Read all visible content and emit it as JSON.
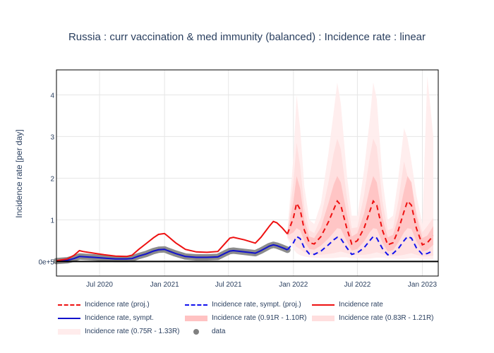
{
  "chart_data": {
    "type": "line",
    "title": "Russia : curr vaccination & med immunity (balanced) : Incidence rate : linear",
    "xlabel": "",
    "ylabel": "Incidence rate [per day]",
    "x_range": [
      "2020-03-01",
      "2023-02-15"
    ],
    "ylim": [
      -0.35,
      4.6
    ],
    "x_ticks": [
      "2020-07-01",
      "2021-01-01",
      "2021-07-01",
      "2022-01-01",
      "2022-07-01",
      "2023-01-01"
    ],
    "x_tick_labels": [
      "Jul 2020",
      "Jan 2021",
      "Jul 2021",
      "Jan 2022",
      "Jul 2022",
      "Jan 2023"
    ],
    "y_ticks": [
      0,
      1,
      2,
      3,
      4
    ],
    "y_tick_labels": [
      "0e+5",
      "1",
      "2",
      "3",
      "4"
    ],
    "grid": true,
    "legend_position": "bottom",
    "colors": {
      "proj": "#ee1111",
      "sympt_proj": "#1111ee",
      "incidence": "#ee1111",
      "sympt": "#1111cc",
      "band1": "#ffc2c2",
      "band2": "#ffdede",
      "band3": "#ffecec",
      "data": "#808080"
    },
    "legend": [
      {
        "key": "proj",
        "label": "Incidence rate (proj.)",
        "style": "dash"
      },
      {
        "key": "sympt_proj",
        "label": "Incidence rate, sympt. (proj.)",
        "style": "dash"
      },
      {
        "key": "incidence",
        "label": "Incidence rate",
        "style": "line"
      },
      {
        "key": "sympt",
        "label": "Incidence rate, sympt.",
        "style": "line"
      },
      {
        "key": "band1",
        "label": "Incidence rate (0.91R - 1.10R)",
        "style": "fill"
      },
      {
        "key": "band2",
        "label": "Incidence rate (0.83R - 1.21R)",
        "style": "fill"
      },
      {
        "key": "band3",
        "label": "Incidence rate (0.75R - 1.33R)",
        "style": "fill"
      },
      {
        "key": "data",
        "label": "data",
        "style": "dot"
      }
    ],
    "series": [
      {
        "name": "Incidence rate",
        "points": [
          [
            "2020-03-01",
            0.02
          ],
          [
            "2020-04-01",
            0.06
          ],
          [
            "2020-04-20",
            0.15
          ],
          [
            "2020-05-05",
            0.26
          ],
          [
            "2020-05-15",
            0.24
          ],
          [
            "2020-06-15",
            0.2
          ],
          [
            "2020-07-15",
            0.16
          ],
          [
            "2020-08-15",
            0.13
          ],
          [
            "2020-09-15",
            0.12
          ],
          [
            "2020-10-01",
            0.15
          ],
          [
            "2020-10-20",
            0.29
          ],
          [
            "2020-11-10",
            0.43
          ],
          [
            "2020-12-01",
            0.57
          ],
          [
            "2020-12-15",
            0.65
          ],
          [
            "2021-01-01",
            0.67
          ],
          [
            "2021-01-10",
            0.61
          ],
          [
            "2021-02-01",
            0.45
          ],
          [
            "2021-03-01",
            0.29
          ],
          [
            "2021-04-01",
            0.23
          ],
          [
            "2021-05-01",
            0.22
          ],
          [
            "2021-06-01",
            0.24
          ],
          [
            "2021-06-20",
            0.42
          ],
          [
            "2021-07-05",
            0.56
          ],
          [
            "2021-07-15",
            0.58
          ],
          [
            "2021-08-15",
            0.52
          ],
          [
            "2021-09-15",
            0.44
          ],
          [
            "2021-10-01",
            0.58
          ],
          [
            "2021-10-25",
            0.85
          ],
          [
            "2021-11-05",
            0.96
          ],
          [
            "2021-11-15",
            0.93
          ],
          [
            "2021-12-01",
            0.8
          ],
          [
            "2021-12-15",
            0.66
          ]
        ]
      },
      {
        "name": "Incidence rate, sympt.",
        "points": [
          [
            "2020-03-01",
            0.01
          ],
          [
            "2020-04-01",
            0.03
          ],
          [
            "2020-04-20",
            0.07
          ],
          [
            "2020-05-05",
            0.12
          ],
          [
            "2020-06-15",
            0.1
          ],
          [
            "2020-07-15",
            0.08
          ],
          [
            "2020-08-15",
            0.06
          ],
          [
            "2020-09-15",
            0.06
          ],
          [
            "2020-10-01",
            0.07
          ],
          [
            "2020-10-20",
            0.13
          ],
          [
            "2020-11-10",
            0.18
          ],
          [
            "2020-12-01",
            0.25
          ],
          [
            "2020-12-15",
            0.28
          ],
          [
            "2021-01-01",
            0.29
          ],
          [
            "2021-01-10",
            0.26
          ],
          [
            "2021-02-01",
            0.19
          ],
          [
            "2021-03-01",
            0.12
          ],
          [
            "2021-04-01",
            0.1
          ],
          [
            "2021-05-01",
            0.1
          ],
          [
            "2021-06-01",
            0.11
          ],
          [
            "2021-06-20",
            0.19
          ],
          [
            "2021-07-05",
            0.25
          ],
          [
            "2021-07-15",
            0.26
          ],
          [
            "2021-08-15",
            0.23
          ],
          [
            "2021-09-15",
            0.2
          ],
          [
            "2021-10-01",
            0.26
          ],
          [
            "2021-10-25",
            0.37
          ],
          [
            "2021-11-05",
            0.4
          ],
          [
            "2021-11-15",
            0.38
          ],
          [
            "2021-12-01",
            0.33
          ],
          [
            "2021-12-15",
            0.28
          ]
        ]
      },
      {
        "name": "data",
        "points": [
          [
            "2020-03-01",
            0.01
          ],
          [
            "2020-04-01",
            0.03
          ],
          [
            "2020-04-20",
            0.07
          ],
          [
            "2020-05-05",
            0.12
          ],
          [
            "2020-06-15",
            0.1
          ],
          [
            "2020-07-15",
            0.08
          ],
          [
            "2020-08-15",
            0.06
          ],
          [
            "2020-09-15",
            0.06
          ],
          [
            "2020-10-01",
            0.07
          ],
          [
            "2020-10-20",
            0.13
          ],
          [
            "2020-11-10",
            0.18
          ],
          [
            "2020-12-01",
            0.25
          ],
          [
            "2020-12-15",
            0.28
          ],
          [
            "2021-01-01",
            0.29
          ],
          [
            "2021-01-10",
            0.26
          ],
          [
            "2021-02-01",
            0.19
          ],
          [
            "2021-03-01",
            0.12
          ],
          [
            "2021-04-01",
            0.1
          ],
          [
            "2021-05-01",
            0.1
          ],
          [
            "2021-06-01",
            0.11
          ],
          [
            "2021-06-20",
            0.19
          ],
          [
            "2021-07-05",
            0.25
          ],
          [
            "2021-07-15",
            0.26
          ],
          [
            "2021-08-15",
            0.23
          ],
          [
            "2021-09-15",
            0.2
          ],
          [
            "2021-10-01",
            0.26
          ],
          [
            "2021-10-25",
            0.37
          ],
          [
            "2021-11-05",
            0.4
          ],
          [
            "2021-11-15",
            0.38
          ],
          [
            "2021-12-01",
            0.33
          ],
          [
            "2021-12-15",
            0.28
          ]
        ]
      },
      {
        "name": "Incidence rate (proj.)",
        "points": [
          [
            "2021-12-15",
            0.66
          ],
          [
            "2022-01-01",
            1.05
          ],
          [
            "2022-01-10",
            1.4
          ],
          [
            "2022-01-20",
            1.25
          ],
          [
            "2022-02-01",
            0.75
          ],
          [
            "2022-02-15",
            0.45
          ],
          [
            "2022-03-01",
            0.42
          ],
          [
            "2022-03-20",
            0.6
          ],
          [
            "2022-04-10",
            0.95
          ],
          [
            "2022-04-25",
            1.25
          ],
          [
            "2022-05-05",
            1.45
          ],
          [
            "2022-05-15",
            1.35
          ],
          [
            "2022-06-01",
            0.8
          ],
          [
            "2022-06-15",
            0.42
          ],
          [
            "2022-07-01",
            0.5
          ],
          [
            "2022-07-20",
            0.8
          ],
          [
            "2022-08-05",
            1.2
          ],
          [
            "2022-08-15",
            1.45
          ],
          [
            "2022-08-25",
            1.35
          ],
          [
            "2022-09-10",
            0.75
          ],
          [
            "2022-09-25",
            0.4
          ],
          [
            "2022-10-10",
            0.45
          ],
          [
            "2022-10-25",
            0.75
          ],
          [
            "2022-11-10",
            1.2
          ],
          [
            "2022-11-20",
            1.45
          ],
          [
            "2022-12-01",
            1.35
          ],
          [
            "2022-12-15",
            0.8
          ],
          [
            "2023-01-01",
            0.4
          ],
          [
            "2023-01-15",
            0.45
          ],
          [
            "2023-02-01",
            0.62
          ]
        ]
      },
      {
        "name": "Incidence rate, sympt. (proj.)",
        "points": [
          [
            "2021-12-15",
            0.28
          ],
          [
            "2022-01-01",
            0.45
          ],
          [
            "2022-01-10",
            0.6
          ],
          [
            "2022-01-20",
            0.55
          ],
          [
            "2022-02-01",
            0.32
          ],
          [
            "2022-02-15",
            0.18
          ],
          [
            "2022-03-01",
            0.17
          ],
          [
            "2022-03-20",
            0.25
          ],
          [
            "2022-04-10",
            0.4
          ],
          [
            "2022-04-25",
            0.52
          ],
          [
            "2022-05-05",
            0.58
          ],
          [
            "2022-05-15",
            0.55
          ],
          [
            "2022-06-01",
            0.33
          ],
          [
            "2022-06-15",
            0.17
          ],
          [
            "2022-07-01",
            0.21
          ],
          [
            "2022-07-20",
            0.33
          ],
          [
            "2022-08-05",
            0.5
          ],
          [
            "2022-08-15",
            0.6
          ],
          [
            "2022-08-25",
            0.56
          ],
          [
            "2022-09-10",
            0.31
          ],
          [
            "2022-09-25",
            0.16
          ],
          [
            "2022-10-10",
            0.19
          ],
          [
            "2022-10-25",
            0.31
          ],
          [
            "2022-11-10",
            0.5
          ],
          [
            "2022-11-20",
            0.6
          ],
          [
            "2022-12-01",
            0.56
          ],
          [
            "2022-12-15",
            0.33
          ],
          [
            "2023-01-01",
            0.17
          ],
          [
            "2023-01-15",
            0.19
          ],
          [
            "2023-02-01",
            0.26
          ]
        ]
      }
    ],
    "bands": [
      {
        "name": "Incidence rate (0.75R - 1.33R)",
        "x": [
          "2021-12-15",
          "2022-01-01",
          "2022-01-10",
          "2022-01-20",
          "2022-02-01",
          "2022-02-15",
          "2022-03-01",
          "2022-03-20",
          "2022-04-10",
          "2022-04-25",
          "2022-05-05",
          "2022-05-15",
          "2022-06-01",
          "2022-06-15",
          "2022-07-01",
          "2022-07-20",
          "2022-08-05",
          "2022-08-15",
          "2022-08-25",
          "2022-09-10",
          "2022-09-25",
          "2022-10-10",
          "2022-10-25",
          "2022-11-10",
          "2022-11-20",
          "2022-12-01",
          "2022-12-15",
          "2023-01-01",
          "2023-01-15",
          "2023-02-01"
        ],
        "low": [
          0.55,
          0.3,
          0.2,
          0.15,
          0.12,
          0.1,
          0.09,
          0.08,
          0.08,
          0.08,
          0.09,
          0.1,
          0.1,
          0.08,
          0.08,
          0.07,
          0.07,
          0.08,
          0.09,
          0.09,
          0.07,
          0.07,
          0.06,
          0.06,
          0.07,
          0.08,
          0.08,
          0.06,
          0.06,
          0.06
        ],
        "high": [
          0.75,
          2.5,
          4.0,
          3.2,
          1.8,
          1.0,
          0.9,
          1.4,
          2.6,
          3.6,
          4.3,
          3.8,
          2.1,
          1.1,
          1.1,
          2.2,
          3.4,
          4.3,
          3.9,
          2.0,
          1.0,
          1.1,
          2.0,
          3.2,
          2.95,
          2.4,
          1.6,
          0.9,
          4.45,
          3.0
        ]
      },
      {
        "name": "Incidence rate (0.83R - 1.21R)",
        "x": [
          "2021-12-15",
          "2022-01-01",
          "2022-01-10",
          "2022-01-20",
          "2022-02-01",
          "2022-02-15",
          "2022-03-01",
          "2022-03-20",
          "2022-04-10",
          "2022-04-25",
          "2022-05-05",
          "2022-05-15",
          "2022-06-01",
          "2022-06-15",
          "2022-07-01",
          "2022-07-20",
          "2022-08-05",
          "2022-08-15",
          "2022-08-25",
          "2022-09-10",
          "2022-09-25",
          "2022-10-10",
          "2022-10-25",
          "2022-11-10",
          "2022-11-20",
          "2022-12-01",
          "2022-12-15",
          "2023-01-01",
          "2023-01-15",
          "2023-02-01"
        ],
        "low": [
          0.58,
          0.45,
          0.35,
          0.3,
          0.22,
          0.18,
          0.16,
          0.16,
          0.18,
          0.2,
          0.22,
          0.24,
          0.2,
          0.16,
          0.16,
          0.16,
          0.18,
          0.2,
          0.22,
          0.18,
          0.14,
          0.14,
          0.14,
          0.16,
          0.18,
          0.2,
          0.16,
          0.12,
          0.12,
          0.14
        ],
        "high": [
          0.72,
          1.9,
          2.85,
          2.3,
          1.3,
          0.75,
          0.68,
          1.05,
          1.9,
          2.6,
          2.95,
          2.7,
          1.55,
          0.8,
          0.82,
          1.6,
          2.5,
          2.95,
          2.75,
          1.45,
          0.75,
          0.8,
          1.45,
          2.4,
          2.05,
          1.8,
          1.2,
          0.7,
          0.85,
          1.05
        ]
      },
      {
        "name": "Incidence rate (0.91R - 1.10R)",
        "x": [
          "2021-12-15",
          "2022-01-01",
          "2022-01-10",
          "2022-01-20",
          "2022-02-01",
          "2022-02-15",
          "2022-03-01",
          "2022-03-20",
          "2022-04-10",
          "2022-04-25",
          "2022-05-05",
          "2022-05-15",
          "2022-06-01",
          "2022-06-15",
          "2022-07-01",
          "2022-07-20",
          "2022-08-05",
          "2022-08-15",
          "2022-08-25",
          "2022-09-10",
          "2022-09-25",
          "2022-10-10",
          "2022-10-25",
          "2022-11-10",
          "2022-11-20",
          "2022-12-01",
          "2022-12-15",
          "2023-01-01",
          "2023-01-15",
          "2023-02-01"
        ],
        "low": [
          0.62,
          0.7,
          0.8,
          0.75,
          0.48,
          0.3,
          0.28,
          0.38,
          0.55,
          0.7,
          0.8,
          0.78,
          0.48,
          0.26,
          0.3,
          0.48,
          0.7,
          0.8,
          0.78,
          0.45,
          0.24,
          0.27,
          0.45,
          0.7,
          0.8,
          0.78,
          0.48,
          0.24,
          0.27,
          0.4
        ],
        "high": [
          0.7,
          1.45,
          2.05,
          1.75,
          1.0,
          0.6,
          0.56,
          0.82,
          1.4,
          1.85,
          2.05,
          1.9,
          1.15,
          0.6,
          0.68,
          1.15,
          1.75,
          2.05,
          1.9,
          1.05,
          0.58,
          0.64,
          1.05,
          1.7,
          2.05,
          1.9,
          1.1,
          0.56,
          0.62,
          0.85
        ]
      }
    ]
  }
}
